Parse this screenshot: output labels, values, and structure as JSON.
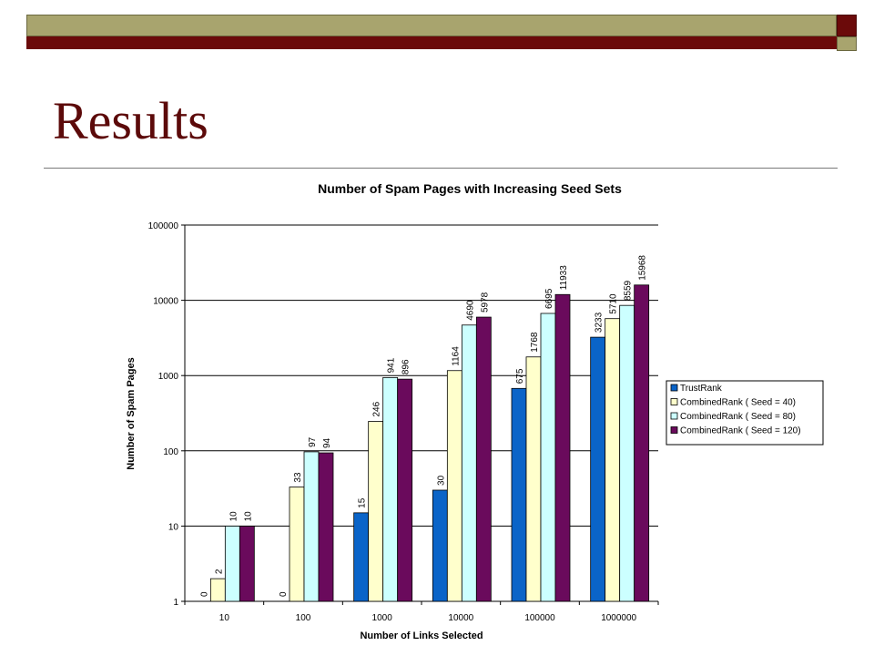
{
  "slide": {
    "title": "Results"
  },
  "colors": {
    "topbar": "#a8a46e",
    "accent_dark": "#6b0a0a",
    "title": "#5c0a0a"
  },
  "chart_data": {
    "type": "bar",
    "title": "Number of Spam Pages with Increasing Seed Sets",
    "xlabel": "Number of Links Selected",
    "ylabel": "Number of Spam Pages",
    "yscale": "log",
    "ylim": [
      1,
      100000
    ],
    "yticks": [
      "1",
      "10",
      "100",
      "1000",
      "10000",
      "100000"
    ],
    "grid": "horizontal",
    "legend_position": "right",
    "categories": [
      "10",
      "100",
      "1000",
      "10000",
      "100000",
      "1000000"
    ],
    "series": [
      {
        "name": "TrustRank",
        "color": "#0a64c8",
        "values": [
          0,
          0,
          15,
          30,
          675,
          3233
        ]
      },
      {
        "name": "CombinedRank ( Seed = 40)",
        "color": "#ffffcc",
        "values": [
          2,
          33,
          246,
          1164,
          1768,
          5710
        ]
      },
      {
        "name": "CombinedRank ( Seed = 80)",
        "color": "#ccffff",
        "values": [
          10,
          97,
          941,
          4690,
          6695,
          8559
        ]
      },
      {
        "name": "CombinedRank ( Seed = 120)",
        "color": "#6a0a5c",
        "values": [
          10,
          94,
          896,
          5978,
          11933,
          15968
        ]
      }
    ]
  }
}
